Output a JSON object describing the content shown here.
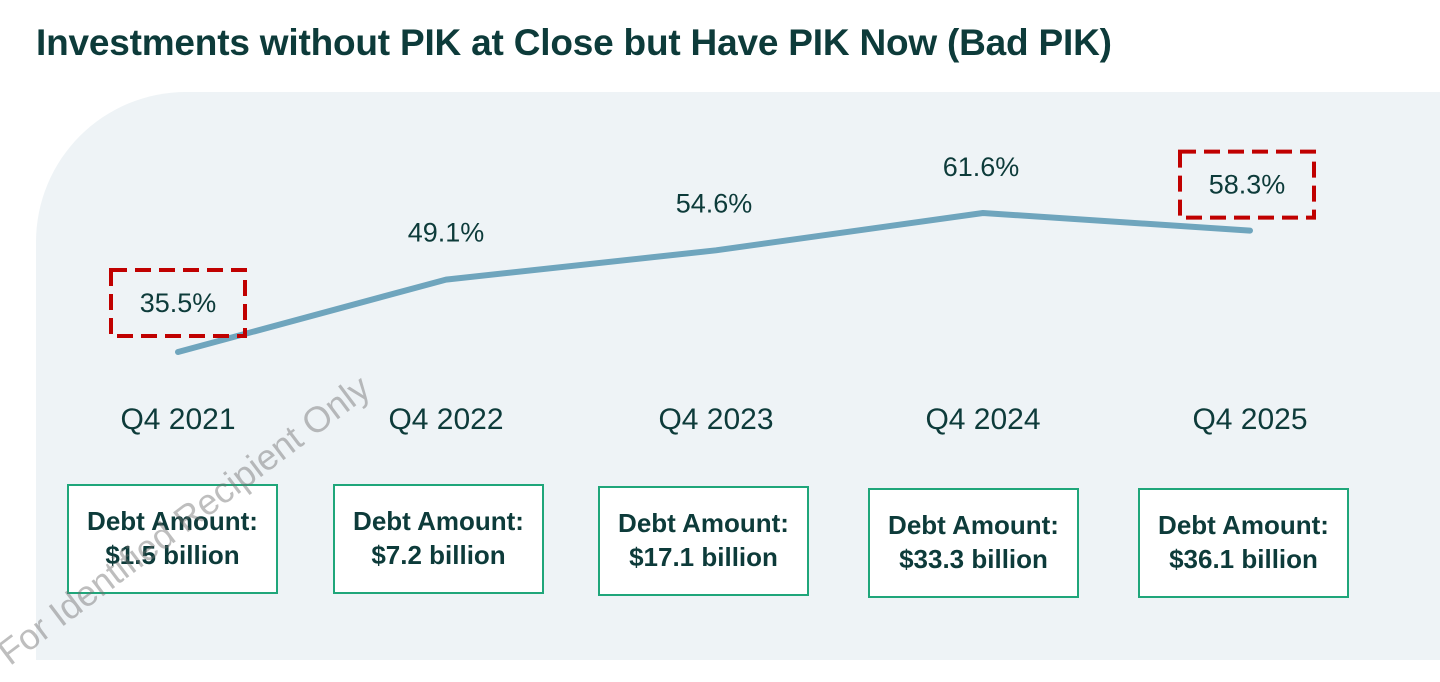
{
  "title": "Investments without PIK at Close but Have PIK Now (Bad PIK)",
  "watermark": "For Identified Recipient Only",
  "colors": {
    "line": "#6fa5bd",
    "callout": "#c00000",
    "box_border": "#1fa67a",
    "panel": "#eef3f6",
    "text": "#0d3b3a"
  },
  "chart_data": {
    "type": "line",
    "categories": [
      "Q4 2021",
      "Q4 2022",
      "Q4 2023",
      "Q4 2024",
      "Q4 2025"
    ],
    "values": [
      35.5,
      49.1,
      54.6,
      61.6,
      58.3
    ],
    "point_labels": [
      "35.5%",
      "49.1%",
      "54.6%",
      "61.6%",
      "58.3%"
    ],
    "highlighted": [
      "Q4 2021",
      "Q4 2025"
    ],
    "debt_amounts": [
      {
        "label": "Debt Amount:",
        "value": "$1.5 billion"
      },
      {
        "label": "Debt Amount:",
        "value": "$7.2 billion"
      },
      {
        "label": "Debt Amount:",
        "value": "$17.1 billion"
      },
      {
        "label": "Debt Amount:",
        "value": "$33.3 billion"
      },
      {
        "label": "Debt Amount:",
        "value": "$36.1 billion"
      }
    ],
    "grid": false,
    "axes_visible": false
  }
}
